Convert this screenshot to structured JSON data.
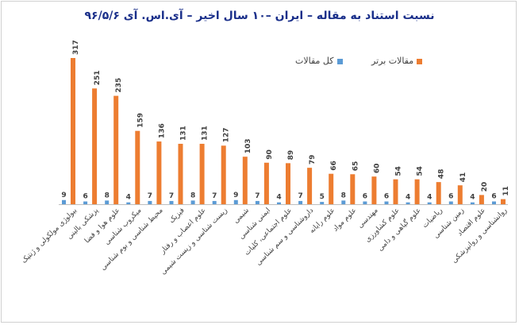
{
  "chart_data": {
    "type": "bar",
    "title": "نسبت استناد به مقاله – ایران –۱۰ سال اخیر – آی.اس. آی ۹۶/۵/۶",
    "legend_position": "top-right",
    "grid": false,
    "ylim": [
      0,
      330
    ],
    "categories": [
      "بیولوژی مولکولی و ژنتیک",
      "پزشکی بالینی",
      "علوم هوا و فضا",
      "میکروب شناسی",
      "محیط شناسی و بوم شناسی",
      "فیزیک",
      "علوم اعصاب و رفتار",
      "زیست شناسی و زیست شیمی",
      "شیمی",
      "ایمنی شناسی",
      "علوم اجتماعی، کلیات",
      "داروشناسی و سم شناسی",
      "علوم رایانه",
      "علوم مواد",
      "مهندسی",
      "علوم کشاورزی",
      "علوم گیاهی و دامی",
      "ریاضیات",
      "زمین شناسی",
      "علوم اقتصاد",
      "روانشناسی و روانپزشکی"
    ],
    "series": [
      {
        "name": "کل مقالات",
        "color": "#5b9bd5",
        "values": [
          9,
          6,
          8,
          4,
          7,
          7,
          8,
          7,
          9,
          7,
          4,
          7,
          5,
          8,
          6,
          6,
          4,
          4,
          6,
          4,
          6
        ]
      },
      {
        "name": "مقالات برتر",
        "color": "#ed7d31",
        "values": [
          317,
          251,
          235,
          159,
          136,
          131,
          131,
          127,
          103,
          90,
          89,
          79,
          66,
          65,
          60,
          54,
          54,
          48,
          41,
          20,
          11
        ]
      }
    ]
  }
}
